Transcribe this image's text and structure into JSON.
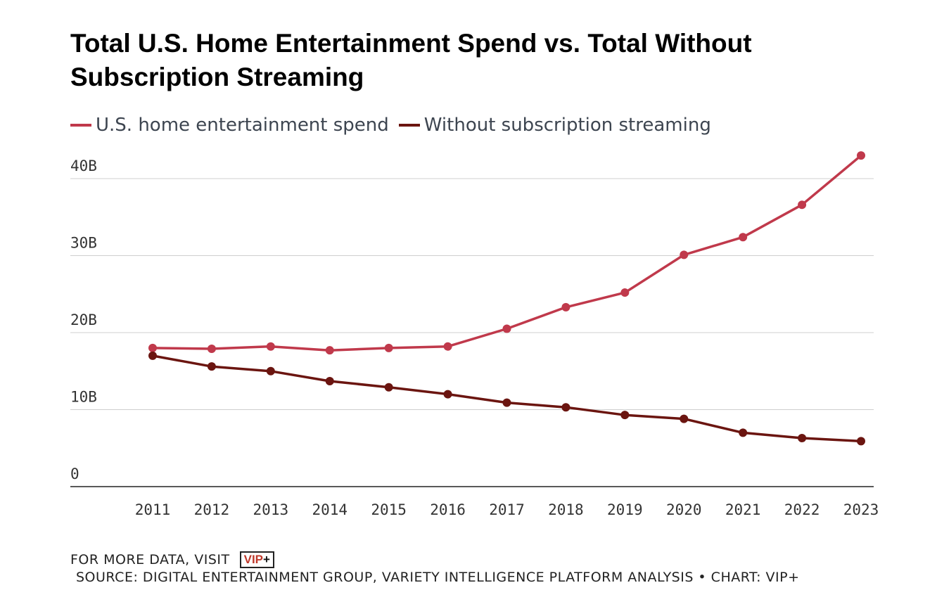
{
  "chart_data": {
    "type": "line",
    "title": "Total U.S. Home Entertainment Spend vs. Total Without Subscription Streaming",
    "x": [
      "2011",
      "2012",
      "2013",
      "2014",
      "2015",
      "2016",
      "2017",
      "2018",
      "2019",
      "2020",
      "2021",
      "2022",
      "2023"
    ],
    "series": [
      {
        "name": "U.S. home entertainment spend",
        "color": "#c0394b",
        "values": [
          18.0,
          17.9,
          18.2,
          17.7,
          18.0,
          18.2,
          20.5,
          23.3,
          25.2,
          30.1,
          32.4,
          36.6,
          43.0
        ]
      },
      {
        "name": "Without subscription streaming",
        "color": "#6b1510",
        "values": [
          17.0,
          15.6,
          15.0,
          13.7,
          12.9,
          12.0,
          10.9,
          10.3,
          9.3,
          8.8,
          7.0,
          6.3,
          5.9
        ]
      }
    ],
    "y_ticks": [
      "0",
      "10B",
      "20B",
      "30B",
      "40B"
    ],
    "y_tick_values": [
      0,
      10,
      20,
      30,
      40
    ],
    "ylim": [
      0,
      45
    ],
    "grid": true,
    "legend_position": "top-left"
  },
  "footer": {
    "more_data": "FOR MORE DATA, VISIT",
    "logo_text": "VIP",
    "logo_plus": "+",
    "source": "SOURCE: DIGITAL ENTERTAINMENT GROUP, VARIETY INTELLIGENCE PLATFORM ANALYSIS • CHART: VIP+"
  }
}
